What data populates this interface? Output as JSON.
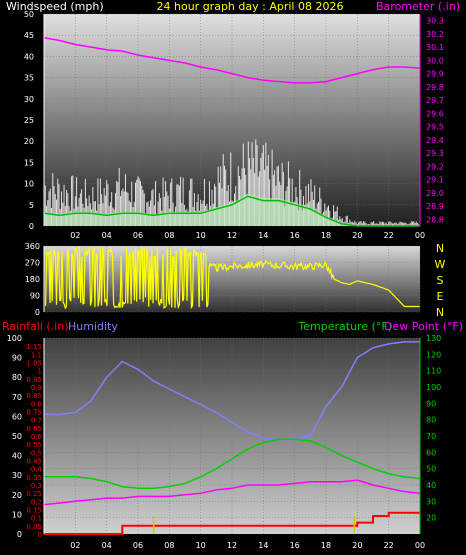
{
  "header": {
    "left_label": "Windspeed (mph)",
    "title": "24 hour graph day : April 08 2026",
    "right_label": "Barometer (.in)"
  },
  "panel3_labels": {
    "rainfall": "Rainfall (.in)",
    "humidity": "Humidity",
    "temperature": "Temperature (°F)",
    "dewpoint": "Dew Point (°F)"
  },
  "colors": {
    "wind": "#ffffff",
    "wind_avg": "#00c000",
    "wind_fill": "#b8f0b8",
    "barometer": "#ff00ff",
    "direction": "#ffff00",
    "rain": "#ff0000",
    "humidity": "#8080ff",
    "temperature": "#00d000",
    "dewpoint": "#ff00ff",
    "title": "#ffff00",
    "left_label": "#ffffff",
    "right_label": "#ff00ff"
  },
  "chart_data": [
    {
      "type": "line",
      "name": "wind-barometer",
      "x_ticks": [
        "02",
        "04",
        "06",
        "08",
        "10",
        "12",
        "14",
        "16",
        "18",
        "20",
        "22",
        "00"
      ],
      "y_left_ticks": [
        0,
        5,
        10,
        15,
        20,
        25,
        30,
        35,
        40,
        45,
        50
      ],
      "y_left_range": [
        0,
        50
      ],
      "y_right_ticks": [
        28.8,
        28.9,
        29.0,
        29.1,
        29.2,
        29.3,
        29.4,
        29.5,
        29.6,
        29.7,
        29.8,
        29.9,
        30.0,
        30.1,
        30.2,
        30.3
      ],
      "y_right_range": [
        28.75,
        30.35
      ],
      "x_range": [
        0,
        24
      ],
      "barometer": {
        "x": [
          0,
          1,
          2,
          3,
          4,
          5,
          6,
          7,
          8,
          9,
          10,
          11,
          12,
          13,
          14,
          15,
          16,
          17,
          18,
          19,
          20,
          21,
          22,
          23,
          24
        ],
        "y": [
          30.17,
          30.15,
          30.12,
          30.1,
          30.08,
          30.07,
          30.04,
          30.02,
          30.0,
          29.98,
          29.95,
          29.93,
          29.9,
          29.87,
          29.85,
          29.84,
          29.83,
          29.83,
          29.84,
          29.87,
          29.9,
          29.93,
          29.95,
          29.95,
          29.94
        ]
      },
      "wind_gust": {
        "x": [
          0,
          1,
          2,
          3,
          4,
          5,
          6,
          7,
          8,
          9,
          10,
          11,
          12,
          13,
          14,
          15,
          16,
          17,
          18,
          19,
          20,
          21,
          22,
          23,
          24
        ],
        "y": [
          12,
          11,
          10,
          9,
          11,
          12,
          10,
          9,
          10,
          11,
          10,
          14,
          16,
          18,
          17,
          14,
          12,
          10,
          7,
          3,
          1,
          1,
          1,
          1,
          1
        ]
      },
      "wind_avg": {
        "x": [
          0,
          1,
          2,
          3,
          4,
          5,
          6,
          7,
          8,
          9,
          10,
          11,
          12,
          13,
          14,
          15,
          16,
          17,
          18,
          19,
          20,
          21,
          22,
          23,
          24
        ],
        "y": [
          3,
          2.5,
          3,
          3,
          2.5,
          3,
          3,
          2.5,
          3,
          3,
          3,
          4,
          5,
          7,
          6,
          6,
          5,
          4,
          2,
          0.5,
          0,
          0,
          0,
          0,
          0
        ]
      }
    },
    {
      "type": "line",
      "name": "wind-direction",
      "y_ticks": [
        0,
        90,
        180,
        270,
        360
      ],
      "y_range": [
        0,
        360
      ],
      "x_range": [
        0,
        24
      ],
      "compass_labels": [
        "N",
        "W",
        "S",
        "E",
        "N"
      ],
      "direction": {
        "x": [
          0,
          2,
          4,
          6,
          8,
          9,
          10,
          11,
          12,
          13,
          14,
          15,
          16,
          17,
          18,
          18.5,
          19,
          19.5,
          20,
          21,
          22,
          23,
          24
        ],
        "y": [
          200,
          210,
          190,
          220,
          200,
          230,
          260,
          240,
          250,
          255,
          260,
          255,
          250,
          250,
          260,
          180,
          160,
          150,
          170,
          150,
          120,
          30,
          30
        ]
      }
    },
    {
      "type": "line",
      "name": "rain-humidity-temp",
      "y_left_ticks_humidity": [
        0,
        10,
        20,
        30,
        40,
        50,
        60,
        70,
        80,
        90,
        100
      ],
      "y_left_ticks_rain": [
        0,
        0.05,
        0.1,
        0.15,
        0.2,
        0.25,
        0.3,
        0.35,
        0.4,
        0.45,
        0.5,
        0.55,
        0.6,
        0.65,
        0.7,
        0.75,
        0.8,
        0.85,
        0.9,
        0.95,
        1,
        1.05,
        1.1,
        1.15
      ],
      "y_right_ticks": [
        20,
        30,
        40,
        50,
        60,
        70,
        80,
        90,
        100,
        110,
        120,
        130
      ],
      "y_right_range": [
        10,
        130
      ],
      "x_range": [
        0,
        24
      ],
      "humidity": {
        "x": [
          0,
          1,
          2,
          3,
          4,
          5,
          6,
          7,
          8,
          9,
          10,
          11,
          12,
          13,
          14,
          15,
          16,
          17,
          18,
          19,
          20,
          21,
          22,
          23,
          24
        ],
        "y": [
          61,
          61,
          62,
          68,
          80,
          88,
          84,
          78,
          74,
          70,
          66,
          62,
          57,
          52,
          49,
          48,
          49,
          50,
          65,
          75,
          90,
          95,
          97,
          98,
          98
        ]
      },
      "temperature": {
        "x": [
          0,
          1,
          2,
          3,
          4,
          5,
          6,
          7,
          8,
          9,
          10,
          11,
          12,
          13,
          14,
          15,
          16,
          17,
          18,
          19,
          20,
          21,
          22,
          23,
          24
        ],
        "y": [
          45,
          45,
          45,
          44,
          42,
          39,
          38,
          38,
          39,
          41,
          45,
          50,
          56,
          62,
          66,
          68,
          68,
          67,
          63,
          58,
          54,
          50,
          47,
          45,
          44
        ]
      },
      "dewpoint": {
        "x": [
          0,
          1,
          2,
          3,
          4,
          5,
          6,
          7,
          8,
          9,
          10,
          11,
          12,
          13,
          14,
          15,
          16,
          17,
          18,
          19,
          20,
          21,
          22,
          23,
          24
        ],
        "y": [
          28,
          29,
          30,
          31,
          32,
          32,
          33,
          33,
          33,
          34,
          35,
          37,
          38,
          40,
          40,
          40,
          41,
          42,
          42,
          42,
          43,
          40,
          38,
          36,
          35
        ]
      },
      "rainfall": {
        "x": [
          0,
          3,
          4,
          5,
          6,
          7,
          8,
          9,
          10,
          11,
          12,
          13,
          14,
          15,
          16,
          17,
          18,
          19,
          20,
          21,
          22,
          23,
          24
        ],
        "y": [
          0,
          0,
          0,
          0.05,
          0.05,
          0.05,
          0.05,
          0.05,
          0.05,
          0.05,
          0.05,
          0.05,
          0.05,
          0.05,
          0.05,
          0.05,
          0.05,
          0.05,
          0.07,
          0.11,
          0.13,
          0.13,
          0.13
        ]
      }
    }
  ]
}
